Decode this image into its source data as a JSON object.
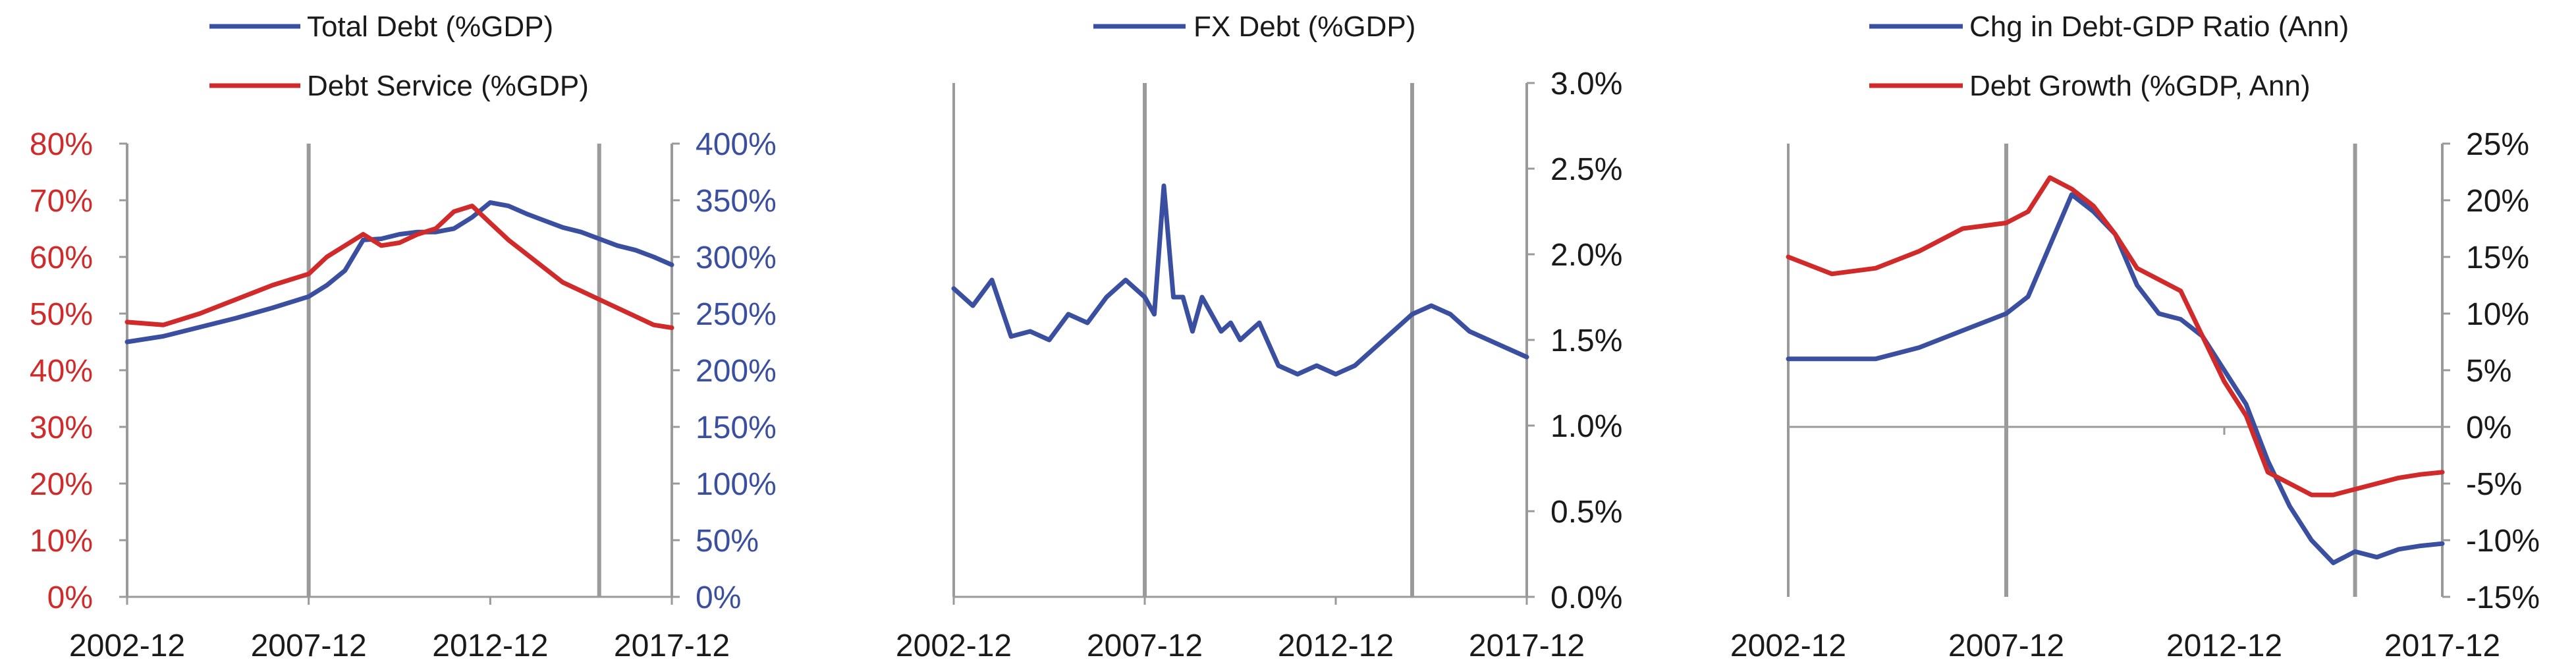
{
  "colors": {
    "blue": "#3a4fa0",
    "red": "#d12a2a",
    "axis_gray": "#9a9a9a",
    "text_dark": "#1a1a1a"
  },
  "chart_data": [
    {
      "type": "line",
      "x_tick_labels": [
        "2002-12",
        "2007-12",
        "2012-12",
        "2017-12"
      ],
      "xlim": [
        "2002-12",
        "2017-12"
      ],
      "vertical_marker_dates": [
        "2007-12",
        "2015-12"
      ],
      "grid": false,
      "legend_position": "top",
      "left_axis": {
        "ylim": [
          0,
          80
        ],
        "tick_labels": [
          "0%",
          "10%",
          "20%",
          "30%",
          "40%",
          "50%",
          "60%",
          "70%",
          "80%"
        ],
        "color": "#d12a2a"
      },
      "right_axis": {
        "ylim": [
          0,
          400
        ],
        "tick_labels": [
          "0%",
          "50%",
          "100%",
          "150%",
          "200%",
          "250%",
          "300%",
          "350%",
          "400%"
        ],
        "color": "#3a4fa0"
      },
      "series": [
        {
          "name": "Total Debt (%GDP)",
          "axis": "right",
          "color": "#3a4fa0",
          "x": [
            "2002-12",
            "2003-12",
            "2004-12",
            "2005-12",
            "2006-12",
            "2007-12",
            "2008-06",
            "2008-12",
            "2009-06",
            "2009-12",
            "2010-06",
            "2010-12",
            "2011-06",
            "2011-12",
            "2012-06",
            "2012-12",
            "2013-06",
            "2013-12",
            "2014-06",
            "2014-12",
            "2015-06",
            "2015-12",
            "2016-06",
            "2016-12",
            "2017-06",
            "2017-12"
          ],
          "values": [
            225,
            230,
            238,
            246,
            255,
            265,
            275,
            288,
            315,
            316,
            320,
            322,
            322,
            325,
            335,
            348,
            345,
            338,
            332,
            326,
            322,
            316,
            310,
            306,
            300,
            293
          ]
        },
        {
          "name": "Debt Service (%GDP)",
          "axis": "left",
          "color": "#d12a2a",
          "x": [
            "2002-12",
            "2003-12",
            "2004-12",
            "2005-12",
            "2006-12",
            "2007-12",
            "2008-06",
            "2008-12",
            "2009-06",
            "2009-12",
            "2010-06",
            "2010-12",
            "2011-06",
            "2011-12",
            "2012-06",
            "2012-12",
            "2013-06",
            "2013-12",
            "2014-06",
            "2014-12",
            "2015-06",
            "2015-12",
            "2016-06",
            "2016-12",
            "2017-06",
            "2017-12"
          ],
          "values": [
            48.5,
            48,
            50,
            52.5,
            55,
            57,
            60,
            62,
            64,
            62,
            62.5,
            64,
            65,
            68,
            69,
            66,
            63,
            60.5,
            58,
            55.5,
            54,
            52.5,
            51,
            49.5,
            48,
            47.5
          ]
        }
      ]
    },
    {
      "type": "line",
      "x_tick_labels": [
        "2002-12",
        "2007-12",
        "2012-12",
        "2017-12"
      ],
      "xlim": [
        "2002-12",
        "2017-12"
      ],
      "vertical_marker_dates": [
        "2007-12",
        "2014-12"
      ],
      "grid": false,
      "legend_position": "top",
      "right_axis": {
        "ylim": [
          0.0,
          3.0
        ],
        "tick_labels": [
          "0.0%",
          "0.5%",
          "1.0%",
          "1.5%",
          "2.0%",
          "2.5%",
          "3.0%"
        ],
        "color": "#1a1a1a"
      },
      "series": [
        {
          "name": "FX Debt (%GDP)",
          "axis": "right",
          "color": "#3a4fa0",
          "x": [
            "2002-12",
            "2003-06",
            "2003-12",
            "2004-06",
            "2004-12",
            "2005-06",
            "2005-12",
            "2006-06",
            "2006-12",
            "2007-06",
            "2007-12",
            "2008-03",
            "2008-06",
            "2008-09",
            "2008-12",
            "2009-03",
            "2009-06",
            "2009-12",
            "2010-03",
            "2010-06",
            "2010-12",
            "2011-06",
            "2011-12",
            "2012-06",
            "2012-12",
            "2013-06",
            "2013-12",
            "2014-06",
            "2014-12",
            "2015-06",
            "2015-12",
            "2016-06",
            "2016-12",
            "2017-06",
            "2017-12"
          ],
          "values": [
            1.8,
            1.7,
            1.85,
            1.52,
            1.55,
            1.5,
            1.65,
            1.6,
            1.75,
            1.85,
            1.75,
            1.65,
            2.4,
            1.75,
            1.75,
            1.55,
            1.75,
            1.55,
            1.6,
            1.5,
            1.6,
            1.35,
            1.3,
            1.35,
            1.3,
            1.35,
            1.45,
            1.55,
            1.65,
            1.7,
            1.65,
            1.55,
            1.5,
            1.45,
            1.4
          ]
        }
      ]
    },
    {
      "type": "line",
      "x_tick_labels": [
        "2002-12",
        "2007-12",
        "2012-12",
        "2017-12"
      ],
      "xlim": [
        "2002-12",
        "2017-12"
      ],
      "vertical_marker_dates": [
        "2007-12",
        "2015-12"
      ],
      "grid": false,
      "legend_position": "top",
      "right_axis": {
        "ylim": [
          -15,
          25
        ],
        "tick_labels": [
          "-15%",
          "-10%",
          "-5%",
          "0%",
          "5%",
          "10%",
          "15%",
          "20%",
          "25%"
        ],
        "color": "#1a1a1a"
      },
      "series": [
        {
          "name": "Chg in Debt-GDP Ratio (Ann)",
          "axis": "right",
          "color": "#3a4fa0",
          "x": [
            "2002-12",
            "2003-12",
            "2004-12",
            "2005-12",
            "2006-12",
            "2007-12",
            "2008-06",
            "2008-12",
            "2009-06",
            "2009-12",
            "2010-06",
            "2010-12",
            "2011-06",
            "2011-12",
            "2012-06",
            "2012-12",
            "2013-06",
            "2013-12",
            "2014-06",
            "2014-12",
            "2015-06",
            "2015-12",
            "2016-06",
            "2016-12",
            "2017-06",
            "2017-12"
          ],
          "values": [
            6,
            6,
            6,
            7,
            8.5,
            10,
            11.5,
            16,
            20.5,
            19,
            17,
            12.5,
            10,
            9.5,
            8,
            5,
            2,
            -3,
            -7,
            -10,
            -12,
            -11,
            -11.5,
            -10.8,
            -10.5,
            -10.3
          ]
        },
        {
          "name": "Debt Growth (%GDP, Ann)",
          "axis": "right",
          "color": "#d12a2a",
          "x": [
            "2002-12",
            "2003-12",
            "2004-12",
            "2005-12",
            "2006-12",
            "2007-12",
            "2008-06",
            "2008-12",
            "2009-06",
            "2009-12",
            "2010-06",
            "2010-12",
            "2011-06",
            "2011-12",
            "2012-06",
            "2012-12",
            "2013-06",
            "2013-12",
            "2014-06",
            "2014-12",
            "2015-06",
            "2015-12",
            "2016-06",
            "2016-12",
            "2017-06",
            "2017-12"
          ],
          "values": [
            15,
            13.5,
            14,
            15.5,
            17.5,
            18,
            19,
            22,
            21,
            19.5,
            17,
            14,
            13,
            12,
            8,
            4,
            1,
            -4,
            -5,
            -6,
            -6,
            -5.5,
            -5,
            -4.5,
            -4.2,
            -4.0
          ]
        }
      ]
    }
  ]
}
